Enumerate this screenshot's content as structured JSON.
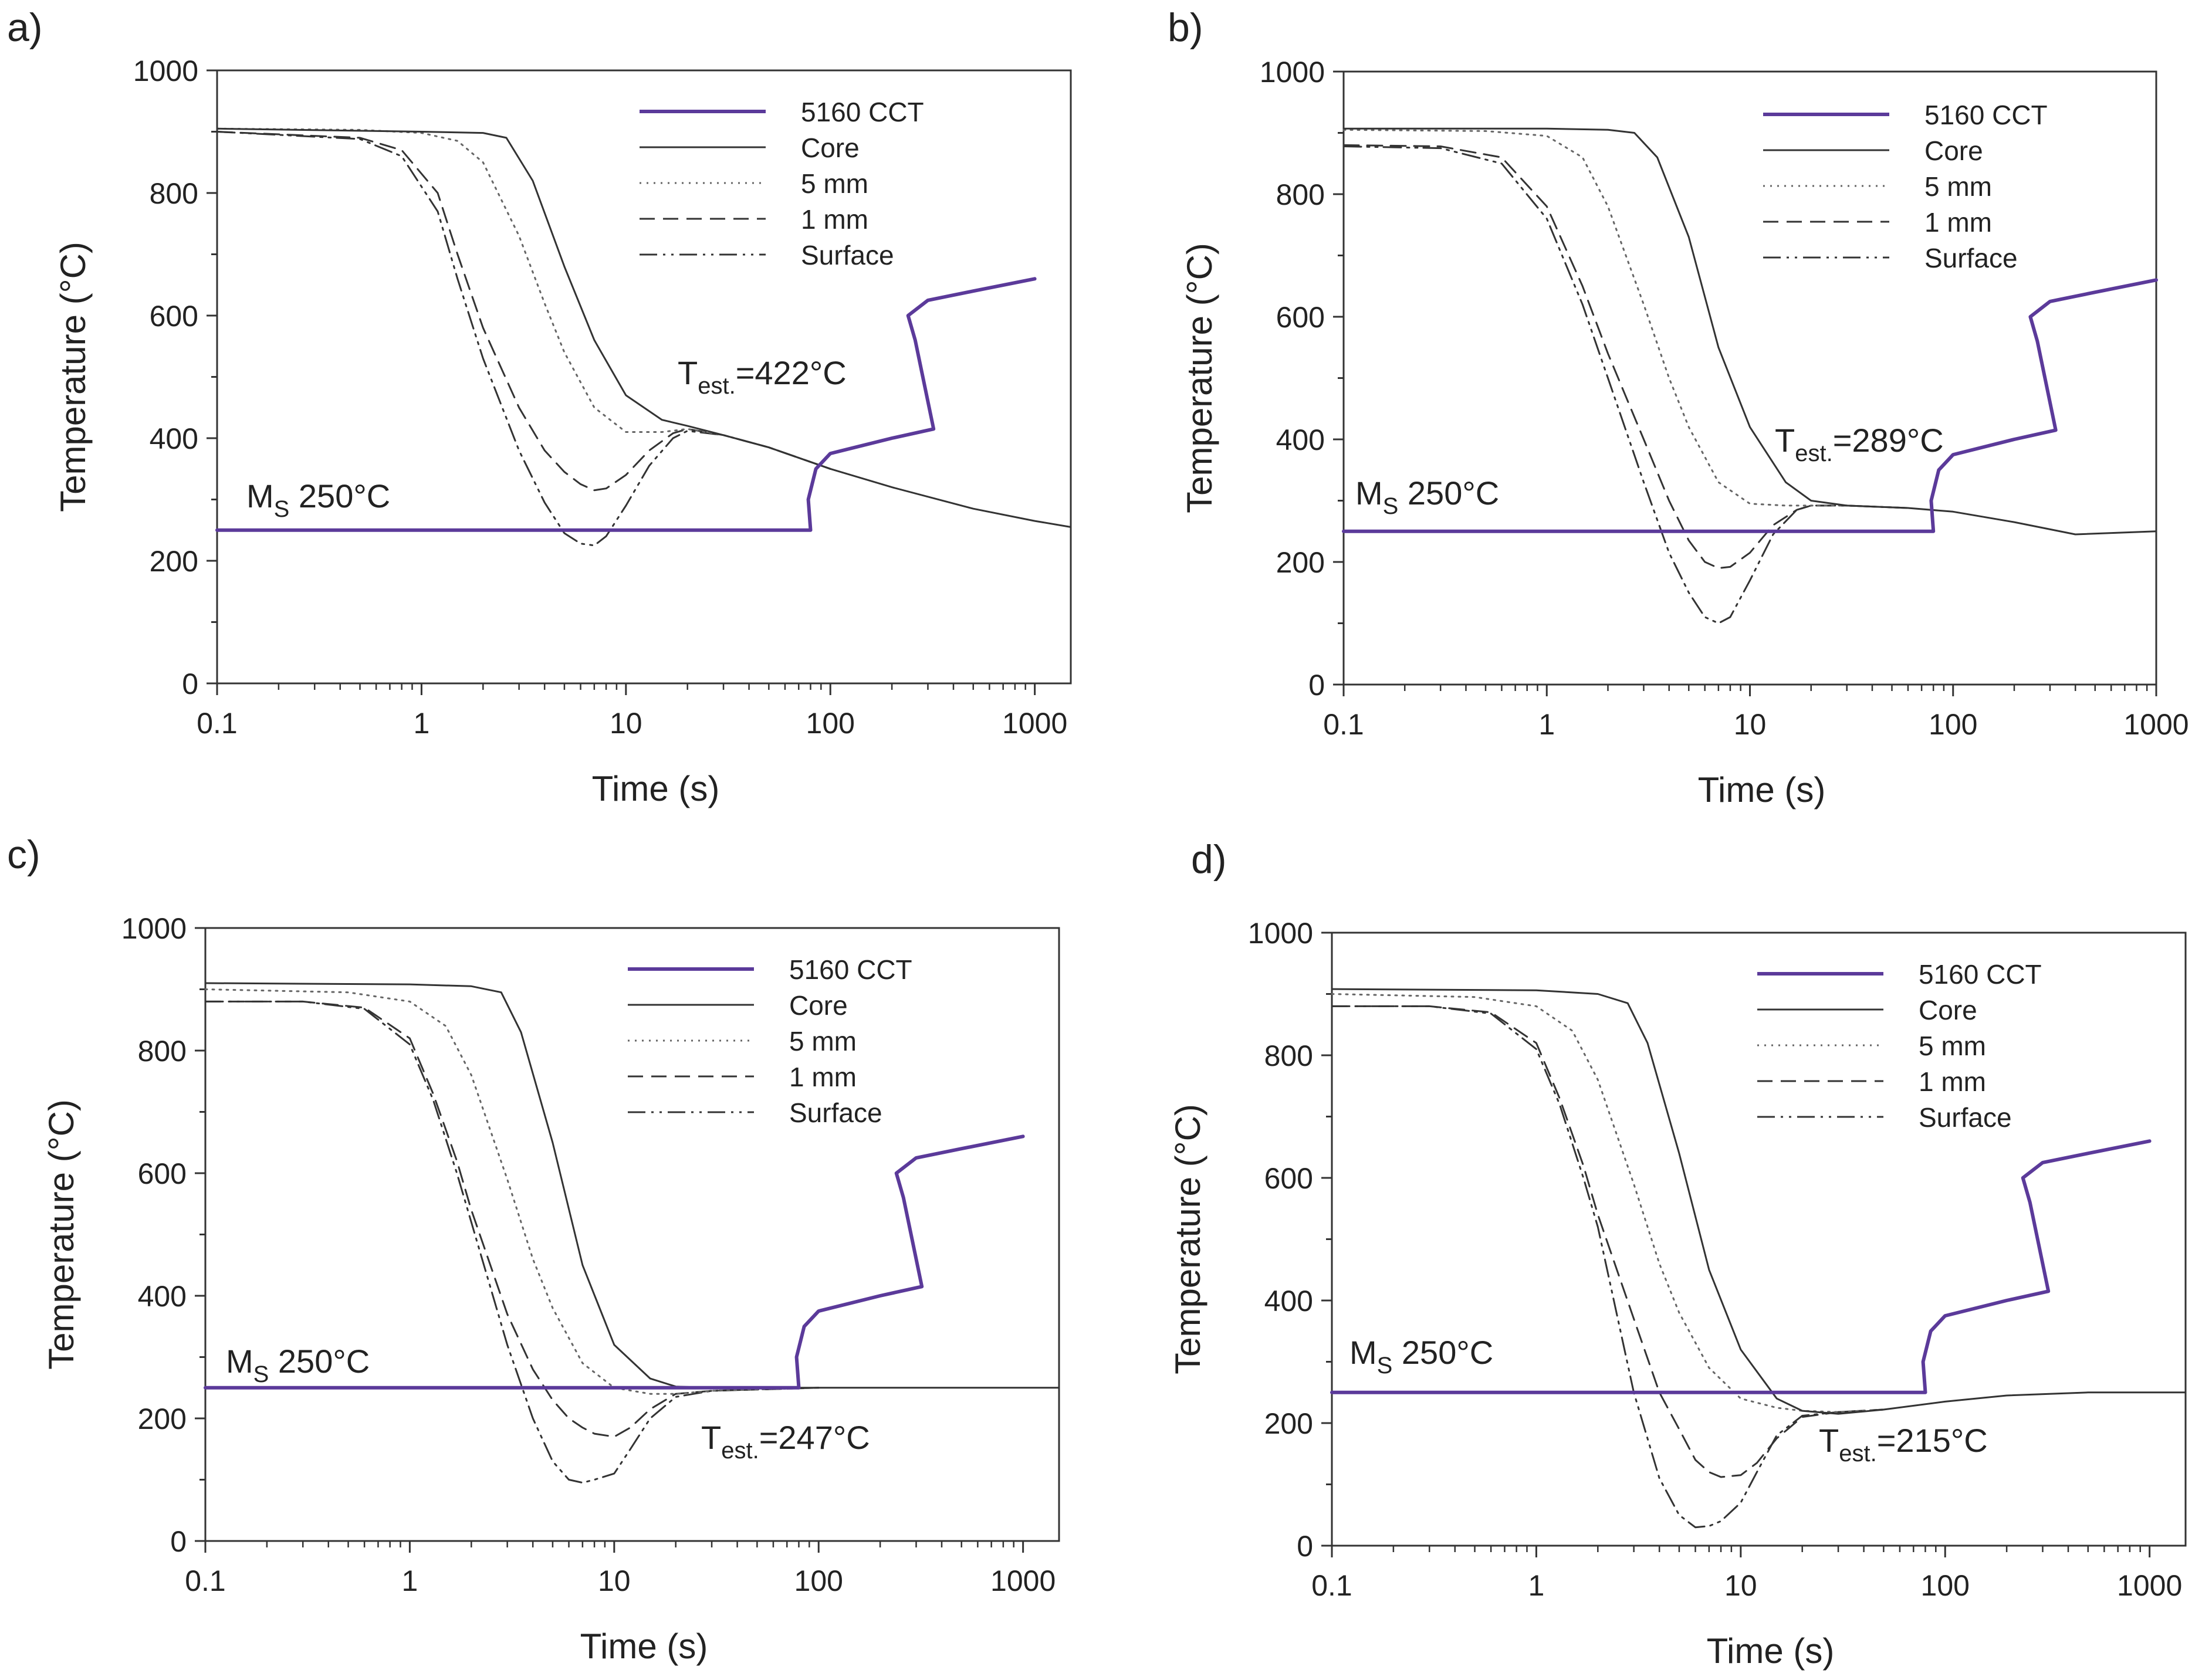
{
  "chart_data": [
    {
      "panel": "a)",
      "type": "line",
      "xlabel": "Time (s)",
      "ylabel": "Temperature (°C)",
      "xscale": "log",
      "xlim": [
        0.1,
        1500
      ],
      "ylim": [
        0,
        1000
      ],
      "xticks": [
        0.1,
        1,
        10,
        100,
        1000
      ],
      "xtick_labels": [
        "0.1",
        "1",
        "10",
        "100",
        "1000"
      ],
      "yticks": [
        0,
        200,
        400,
        600,
        800,
        1000
      ],
      "ytick_labels": [
        "0",
        "200",
        "400",
        "600",
        "800",
        "1000"
      ],
      "legend_position": "top-right",
      "annotations": [
        {
          "main": "T",
          "sub": "est.",
          "suffix": "=422°C",
          "anchor": "t-est"
        },
        {
          "main": "M",
          "sub": "S",
          "suffix": " 250°C",
          "anchor": "ms"
        }
      ],
      "series": [
        {
          "name": "5160 CCT",
          "style": "cct",
          "x": [
            0.1,
            80,
            78,
            85,
            100,
            200,
            320,
            260,
            240,
            300,
            500,
            1000
          ],
          "y": [
            250,
            250,
            300,
            350,
            375,
            400,
            415,
            560,
            600,
            625,
            640,
            660
          ]
        },
        {
          "name": "Core",
          "style": "solid",
          "x": [
            0.1,
            1,
            2,
            2.6,
            3.5,
            5,
            7,
            10,
            15,
            20,
            30,
            50,
            100,
            200,
            500,
            1000,
            1500
          ],
          "y": [
            905,
            900,
            898,
            890,
            820,
            680,
            560,
            470,
            430,
            420,
            405,
            385,
            350,
            320,
            285,
            265,
            255
          ]
        },
        {
          "name": "5 mm",
          "style": "dotted",
          "x": [
            0.1,
            0.5,
            1,
            1.5,
            2,
            3,
            4,
            5,
            7,
            10,
            15,
            20,
            30,
            50,
            100
          ],
          "y": [
            905,
            903,
            898,
            885,
            850,
            730,
            620,
            540,
            450,
            410,
            410,
            415,
            405,
            385,
            350
          ]
        },
        {
          "name": "1 mm",
          "style": "dashed",
          "x": [
            0.1,
            0.5,
            0.8,
            1.2,
            1.5,
            2,
            3,
            4,
            5,
            6,
            7,
            8,
            10,
            13,
            17,
            20,
            30,
            50,
            100
          ],
          "y": [
            900,
            890,
            870,
            800,
            700,
            580,
            450,
            380,
            345,
            325,
            315,
            318,
            340,
            380,
            408,
            415,
            405,
            385,
            350
          ]
        },
        {
          "name": "Surface",
          "style": "dashdot",
          "x": [
            0.1,
            0.5,
            0.8,
            1.2,
            1.5,
            2,
            3,
            4,
            5,
            6,
            7,
            8,
            10,
            13,
            17,
            20,
            30,
            50,
            100
          ],
          "y": [
            900,
            888,
            860,
            770,
            660,
            530,
            380,
            295,
            245,
            228,
            225,
            240,
            290,
            355,
            400,
            412,
            405,
            385,
            350
          ]
        }
      ]
    },
    {
      "panel": "b)",
      "type": "line",
      "xlabel": "Time (s)",
      "ylabel": "Temperature (°C)",
      "xscale": "log",
      "xlim": [
        0.1,
        1000
      ],
      "ylim": [
        0,
        1000
      ],
      "xticks": [
        0.1,
        1,
        10,
        100,
        1000
      ],
      "xtick_labels": [
        "0.1",
        "1",
        "10",
        "100",
        "1000"
      ],
      "yticks": [
        0,
        200,
        400,
        600,
        800,
        1000
      ],
      "ytick_labels": [
        "0",
        "200",
        "400",
        "600",
        "800",
        "1000"
      ],
      "legend_position": "top-right",
      "annotations": [
        {
          "main": "T",
          "sub": "est.",
          "suffix": "=289°C",
          "anchor": "t-est"
        },
        {
          "main": "M",
          "sub": "S",
          "suffix": " 250°C",
          "anchor": "ms"
        }
      ],
      "series": [
        {
          "name": "5160 CCT",
          "style": "cct",
          "x": [
            0.1,
            80,
            78,
            85,
            100,
            200,
            320,
            260,
            240,
            300,
            500,
            1000
          ],
          "y": [
            250,
            250,
            300,
            350,
            375,
            400,
            415,
            560,
            600,
            625,
            640,
            660
          ]
        },
        {
          "name": "Core",
          "style": "solid",
          "x": [
            0.1,
            1,
            2,
            2.7,
            3.5,
            5,
            7,
            10,
            15,
            20,
            30,
            60,
            100,
            200,
            400,
            1000
          ],
          "y": [
            907,
            907,
            905,
            900,
            860,
            730,
            550,
            420,
            330,
            300,
            292,
            288,
            282,
            265,
            245,
            250
          ]
        },
        {
          "name": "5 mm",
          "style": "dotted",
          "x": [
            0.1,
            0.5,
            1,
            1.5,
            2,
            3,
            4,
            5,
            7,
            10,
            15,
            20,
            30,
            60
          ],
          "y": [
            905,
            903,
            895,
            860,
            780,
            620,
            500,
            420,
            330,
            295,
            292,
            292,
            292,
            288
          ]
        },
        {
          "name": "1 mm",
          "style": "dashed",
          "x": [
            0.1,
            0.3,
            0.6,
            1,
            1.5,
            2,
            3,
            4,
            5,
            6,
            7,
            8,
            10,
            13,
            17,
            20,
            30,
            60
          ],
          "y": [
            880,
            878,
            860,
            780,
            650,
            540,
            400,
            300,
            235,
            200,
            190,
            192,
            215,
            260,
            285,
            292,
            292,
            288
          ]
        },
        {
          "name": "Surface",
          "style": "dashdot",
          "x": [
            0.1,
            0.3,
            0.6,
            1,
            1.5,
            2,
            3,
            4,
            5,
            6,
            7,
            8,
            10,
            13,
            17,
            20,
            30,
            60
          ],
          "y": [
            878,
            875,
            850,
            760,
            620,
            500,
            330,
            215,
            150,
            110,
            100,
            110,
            170,
            245,
            285,
            292,
            292,
            288
          ]
        }
      ]
    },
    {
      "panel": "c)",
      "type": "line",
      "xlabel": "Time (s)",
      "ylabel": "Temperature (°C)",
      "xscale": "log",
      "xlim": [
        0.1,
        1500
      ],
      "ylim": [
        0,
        1000
      ],
      "xticks": [
        0.1,
        1,
        10,
        100,
        1000
      ],
      "xtick_labels": [
        "0.1",
        "1",
        "10",
        "100",
        "1000"
      ],
      "yticks": [
        0,
        200,
        400,
        600,
        800,
        1000
      ],
      "ytick_labels": [
        "0",
        "200",
        "400",
        "600",
        "800",
        "1000"
      ],
      "legend_position": "top-right",
      "annotations": [
        {
          "main": "T",
          "sub": "est.",
          "suffix": "=247°C",
          "anchor": "t-est"
        },
        {
          "main": "M",
          "sub": "S",
          "suffix": " 250°C",
          "anchor": "ms"
        }
      ],
      "series": [
        {
          "name": "5160 CCT",
          "style": "cct",
          "x": [
            0.1,
            80,
            78,
            85,
            100,
            200,
            320,
            260,
            240,
            300,
            500,
            1000
          ],
          "y": [
            250,
            250,
            300,
            350,
            375,
            400,
            415,
            560,
            600,
            625,
            640,
            660
          ]
        },
        {
          "name": "Core",
          "style": "solid",
          "x": [
            0.1,
            1,
            2,
            2.8,
            3.5,
            5,
            7,
            10,
            15,
            20,
            30,
            100,
            1500
          ],
          "y": [
            910,
            908,
            905,
            895,
            830,
            650,
            450,
            320,
            265,
            252,
            250,
            250,
            250
          ]
        },
        {
          "name": "5 mm",
          "style": "dotted",
          "x": [
            0.1,
            0.5,
            1,
            1.5,
            2,
            3,
            4,
            5,
            7,
            10,
            15,
            20,
            30,
            100
          ],
          "y": [
            900,
            895,
            880,
            840,
            760,
            590,
            460,
            380,
            290,
            250,
            240,
            240,
            245,
            250
          ]
        },
        {
          "name": "1 mm",
          "style": "dashed",
          "x": [
            0.1,
            0.3,
            0.6,
            1,
            1.3,
            1.7,
            2,
            3,
            4,
            5,
            6,
            7,
            8,
            10,
            12,
            15,
            20,
            30,
            100
          ],
          "y": [
            880,
            880,
            870,
            820,
            730,
            620,
            540,
            370,
            280,
            230,
            200,
            185,
            175,
            170,
            185,
            215,
            240,
            245,
            250
          ]
        },
        {
          "name": "Surface",
          "style": "dashdot",
          "x": [
            0.1,
            0.3,
            0.6,
            1,
            1.3,
            1.7,
            2,
            3,
            4,
            5,
            6,
            7,
            8,
            10,
            12,
            15,
            20,
            30,
            100
          ],
          "y": [
            880,
            880,
            868,
            810,
            720,
            600,
            520,
            320,
            200,
            130,
            100,
            95,
            100,
            110,
            150,
            200,
            235,
            245,
            250
          ]
        }
      ]
    },
    {
      "panel": "d)",
      "type": "line",
      "xlabel": "Time (s)",
      "ylabel": "Temperature (°C)",
      "xscale": "log",
      "xlim": [
        0.1,
        1500
      ],
      "ylim": [
        0,
        1000
      ],
      "xticks": [
        0.1,
        1,
        10,
        100,
        1000
      ],
      "xtick_labels": [
        "0.1",
        "1",
        "10",
        "100",
        "1000"
      ],
      "yticks": [
        0,
        200,
        400,
        600,
        800,
        1000
      ],
      "ytick_labels": [
        "0",
        "200",
        "400",
        "600",
        "800",
        "1000"
      ],
      "legend_position": "top-right",
      "annotations": [
        {
          "main": "T",
          "sub": "est.",
          "suffix": "=215°C",
          "anchor": "t-est"
        },
        {
          "main": "M",
          "sub": "S",
          "suffix": " 250°C",
          "anchor": "ms"
        }
      ],
      "series": [
        {
          "name": "5160 CCT",
          "style": "cct",
          "x": [
            0.1,
            80,
            78,
            85,
            100,
            200,
            320,
            260,
            240,
            300,
            500,
            1000
          ],
          "y": [
            250,
            250,
            300,
            350,
            375,
            400,
            415,
            560,
            600,
            625,
            640,
            660
          ]
        },
        {
          "name": "Core",
          "style": "solid",
          "x": [
            0.1,
            1,
            2,
            2.8,
            3.5,
            5,
            7,
            10,
            15,
            20,
            30,
            50,
            100,
            200,
            500,
            1500
          ],
          "y": [
            908,
            906,
            900,
            885,
            820,
            640,
            450,
            320,
            240,
            220,
            215,
            222,
            235,
            245,
            250,
            250
          ]
        },
        {
          "name": "5 mm",
          "style": "dotted",
          "x": [
            0.1,
            0.5,
            1,
            1.5,
            2,
            3,
            4,
            5,
            7,
            10,
            15,
            20,
            30,
            50
          ],
          "y": [
            900,
            895,
            880,
            840,
            760,
            590,
            460,
            380,
            290,
            240,
            225,
            220,
            218,
            222
          ]
        },
        {
          "name": "1 mm",
          "style": "dashed",
          "x": [
            0.1,
            0.3,
            0.6,
            1,
            1.3,
            1.7,
            2,
            3,
            4,
            5,
            6,
            7,
            8,
            10,
            12,
            15,
            20,
            30,
            50
          ],
          "y": [
            880,
            880,
            870,
            820,
            730,
            620,
            540,
            370,
            250,
            190,
            140,
            120,
            112,
            115,
            135,
            175,
            210,
            218,
            222
          ]
        },
        {
          "name": "Surface",
          "style": "dashdot",
          "x": [
            0.1,
            0.3,
            0.6,
            1,
            1.3,
            1.7,
            2,
            3,
            4,
            5,
            6,
            7,
            8,
            10,
            12,
            15,
            20,
            30,
            50
          ],
          "y": [
            880,
            880,
            868,
            810,
            720,
            600,
            520,
            250,
            110,
            50,
            30,
            32,
            40,
            70,
            120,
            180,
            212,
            218,
            222
          ]
        }
      ]
    }
  ]
}
